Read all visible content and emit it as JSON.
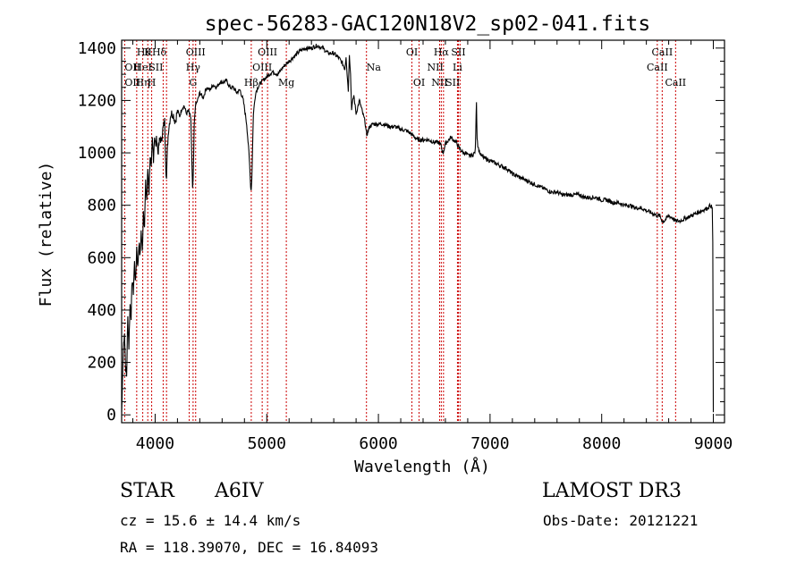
{
  "chart_data": {
    "type": "line",
    "title": "spec-56283-GAC120N18V2_sp02-041.fits",
    "xlabel": "Wavelength (Å)",
    "ylabel": "Flux (relative)",
    "xlim": [
      3700,
      9100
    ],
    "ylim": [
      -30,
      1430
    ],
    "x_ticks": [
      4000,
      5000,
      6000,
      7000,
      8000,
      9000
    ],
    "x_tick_labels": [
      "4000",
      "5000",
      "6000",
      "7000",
      "8000",
      "9000"
    ],
    "y_ticks": [
      0,
      200,
      400,
      600,
      800,
      1000,
      1200,
      1400
    ],
    "y_tick_labels": [
      "0",
      "200",
      "400",
      "600",
      "800",
      "1000",
      "1200",
      "1400"
    ],
    "series": [
      {
        "name": "flux",
        "x": [
          3700,
          3715,
          3725,
          3735,
          3745,
          3755,
          3765,
          3775,
          3785,
          3795,
          3805,
          3815,
          3825,
          3835,
          3845,
          3855,
          3865,
          3875,
          3885,
          3895,
          3905,
          3915,
          3925,
          3935,
          3945,
          3955,
          3965,
          3975,
          3985,
          3995,
          4005,
          4015,
          4025,
          4035,
          4045,
          4055,
          4065,
          4075,
          4085,
          4095,
          4102,
          4110,
          4120,
          4140,
          4160,
          4180,
          4200,
          4220,
          4240,
          4260,
          4280,
          4300,
          4320,
          4330,
          4335,
          4340,
          4345,
          4350,
          4360,
          4380,
          4400,
          4430,
          4460,
          4490,
          4520,
          4550,
          4580,
          4610,
          4640,
          4670,
          4700,
          4730,
          4760,
          4790,
          4820,
          4840,
          4850,
          4855,
          4861,
          4866,
          4872,
          4880,
          4900,
          4920,
          4950,
          5000,
          5050,
          5100,
          5150,
          5200,
          5250,
          5300,
          5350,
          5400,
          5450,
          5500,
          5550,
          5600,
          5650,
          5680,
          5700,
          5710,
          5720,
          5730,
          5740,
          5750,
          5760,
          5780,
          5800,
          5830,
          5860,
          5880,
          5890,
          5896,
          5905,
          5920,
          5950,
          6000,
          6050,
          6100,
          6150,
          6200,
          6250,
          6300,
          6350,
          6400,
          6450,
          6500,
          6540,
          6555,
          6563,
          6570,
          6580,
          6600,
          6630,
          6650,
          6670,
          6700,
          6720,
          6740,
          6760,
          6780,
          6800,
          6820,
          6840,
          6860,
          6868,
          6872,
          6878,
          6884,
          6890,
          6900,
          6920,
          6950,
          7000,
          7050,
          7100,
          7150,
          7200,
          7250,
          7300,
          7350,
          7400,
          7450,
          7500,
          7550,
          7600,
          7650,
          7700,
          7750,
          7800,
          7850,
          7900,
          7950,
          8000,
          8050,
          8100,
          8150,
          8200,
          8250,
          8300,
          8350,
          8400,
          8450,
          8498,
          8520,
          8542,
          8560,
          8600,
          8640,
          8662,
          8680,
          8700,
          8750,
          8800,
          8850,
          8900,
          8950,
          8975,
          8990,
          8995,
          9000
        ],
        "y": [
          10,
          250,
          320,
          180,
          150,
          370,
          260,
          420,
          380,
          520,
          470,
          580,
          500,
          640,
          560,
          660,
          600,
          700,
          620,
          780,
          720,
          880,
          820,
          940,
          850,
          990,
          930,
          1050,
          980,
          1070,
          1020,
          1060,
          1000,
          1030,
          1060,
          1040,
          1080,
          1100,
          1120,
          960,
          900,
          1020,
          1090,
          1150,
          1150,
          1120,
          1160,
          1140,
          1170,
          1180,
          1150,
          1160,
          1130,
          950,
          860,
          900,
          980,
          1100,
          1180,
          1200,
          1230,
          1210,
          1250,
          1240,
          1260,
          1250,
          1270,
          1270,
          1275,
          1250,
          1250,
          1230,
          1240,
          1200,
          1110,
          1000,
          930,
          870,
          860,
          900,
          1010,
          1150,
          1230,
          1250,
          1270,
          1290,
          1310,
          1300,
          1330,
          1350,
          1370,
          1390,
          1400,
          1400,
          1410,
          1400,
          1380,
          1380,
          1360,
          1340,
          1320,
          1370,
          1300,
          1240,
          1380,
          1300,
          1170,
          1220,
          1150,
          1200,
          1150,
          1120,
          1080,
          1070,
          1080,
          1100,
          1110,
          1110,
          1110,
          1100,
          1100,
          1090,
          1085,
          1070,
          1050,
          1050,
          1050,
          1040,
          1040,
          1030,
          1030,
          1010,
          1000,
          1035,
          1050,
          1060,
          1050,
          1040,
          1020,
          1010,
          1000,
          1000,
          990,
          990,
          990,
          1000,
          1010,
          1080,
          1200,
          1060,
          1030,
          1010,
          990,
          980,
          970,
          960,
          950,
          940,
          920,
          910,
          900,
          890,
          880,
          870,
          860,
          850,
          850,
          840,
          840,
          840,
          840,
          830,
          830,
          830,
          820,
          820,
          810,
          810,
          800,
          800,
          790,
          790,
          780,
          770,
          760,
          760,
          740,
          740,
          760,
          750,
          740,
          740,
          740,
          750,
          760,
          770,
          780,
          790,
          800,
          790,
          660,
          10
        ]
      }
    ],
    "line_labels": [
      {
        "wavelength": 3835,
        "label": "Hθ",
        "row": 1,
        "anchor": "start"
      },
      {
        "wavelength": 3727,
        "label": "OII",
        "row": 2,
        "anchor": "start"
      },
      {
        "wavelength": 3727,
        "label": "OII",
        "row": 3,
        "anchor": "start"
      },
      {
        "wavelength": 3889,
        "label": "Hη",
        "row": 3,
        "anchor": "middle"
      },
      {
        "wavelength": 3889,
        "label": "HeI",
        "row": 2,
        "anchor": "middle"
      },
      {
        "wavelength": 3934,
        "label": "K",
        "row": 1,
        "anchor": "middle"
      },
      {
        "wavelength": 3969,
        "label": "H",
        "row": 3,
        "anchor": "middle"
      },
      {
        "wavelength": 4072,
        "label": "SII",
        "row": 2,
        "anchor": "end"
      },
      {
        "wavelength": 4102,
        "label": "Hδ",
        "row": 1,
        "anchor": "end"
      },
      {
        "wavelength": 4363,
        "label": "OIII",
        "row": 1,
        "anchor": "middle"
      },
      {
        "wavelength": 4340,
        "label": "Hγ",
        "row": 2,
        "anchor": "middle"
      },
      {
        "wavelength": 4305,
        "label": "G",
        "row": 3,
        "anchor": "start"
      },
      {
        "wavelength": 4861,
        "label": "Hβ",
        "row": 3,
        "anchor": "middle"
      },
      {
        "wavelength": 5007,
        "label": "OIII",
        "row": 1,
        "anchor": "middle"
      },
      {
        "wavelength": 4959,
        "label": "OIII",
        "row": 2,
        "anchor": "middle"
      },
      {
        "wavelength": 5175,
        "label": "Mg",
        "row": 3,
        "anchor": "middle"
      },
      {
        "wavelength": 5893,
        "label": "Na",
        "row": 2,
        "anchor": "start"
      },
      {
        "wavelength": 6300,
        "label": "OI",
        "row": 1,
        "anchor": "middle"
      },
      {
        "wavelength": 6364,
        "label": "OI",
        "row": 3,
        "anchor": "middle"
      },
      {
        "wavelength": 6563,
        "label": "Hα",
        "row": 1,
        "anchor": "middle"
      },
      {
        "wavelength": 6583,
        "label": "NII",
        "row": 2,
        "anchor": "end"
      },
      {
        "wavelength": 6548,
        "label": "NII",
        "row": 3,
        "anchor": "middle"
      },
      {
        "wavelength": 6716,
        "label": "SII",
        "row": 1,
        "anchor": "middle"
      },
      {
        "wavelength": 6708,
        "label": "Li",
        "row": 2,
        "anchor": "middle"
      },
      {
        "wavelength": 6731,
        "label": "SII",
        "row": 3,
        "anchor": "end"
      },
      {
        "wavelength": 8542,
        "label": "CaII",
        "row": 1,
        "anchor": "middle"
      },
      {
        "wavelength": 8498,
        "label": "CaII",
        "row": 2,
        "anchor": "middle"
      },
      {
        "wavelength": 8662,
        "label": "CaII",
        "row": 3,
        "anchor": "middle"
      }
    ],
    "line_positions": [
      3727,
      3835,
      3889,
      3934,
      3969,
      4072,
      4102,
      4305,
      4340,
      4363,
      4861,
      4959,
      5007,
      5175,
      5893,
      6300,
      6364,
      6548,
      6563,
      6583,
      6708,
      6716,
      6731,
      8498,
      8542,
      8662
    ]
  },
  "info": {
    "object_class": "STAR",
    "subclass": "A6IV",
    "survey": "LAMOST DR3",
    "cz": "cz = 15.6 ± 14.4 km/s",
    "obs_date": "Obs-Date: 20121221",
    "coords": "RA = 118.39070, DEC =  16.84093"
  },
  "colors": {
    "line_marker": "#cc0000",
    "spectrum": "#000000",
    "axes": "#000000"
  }
}
